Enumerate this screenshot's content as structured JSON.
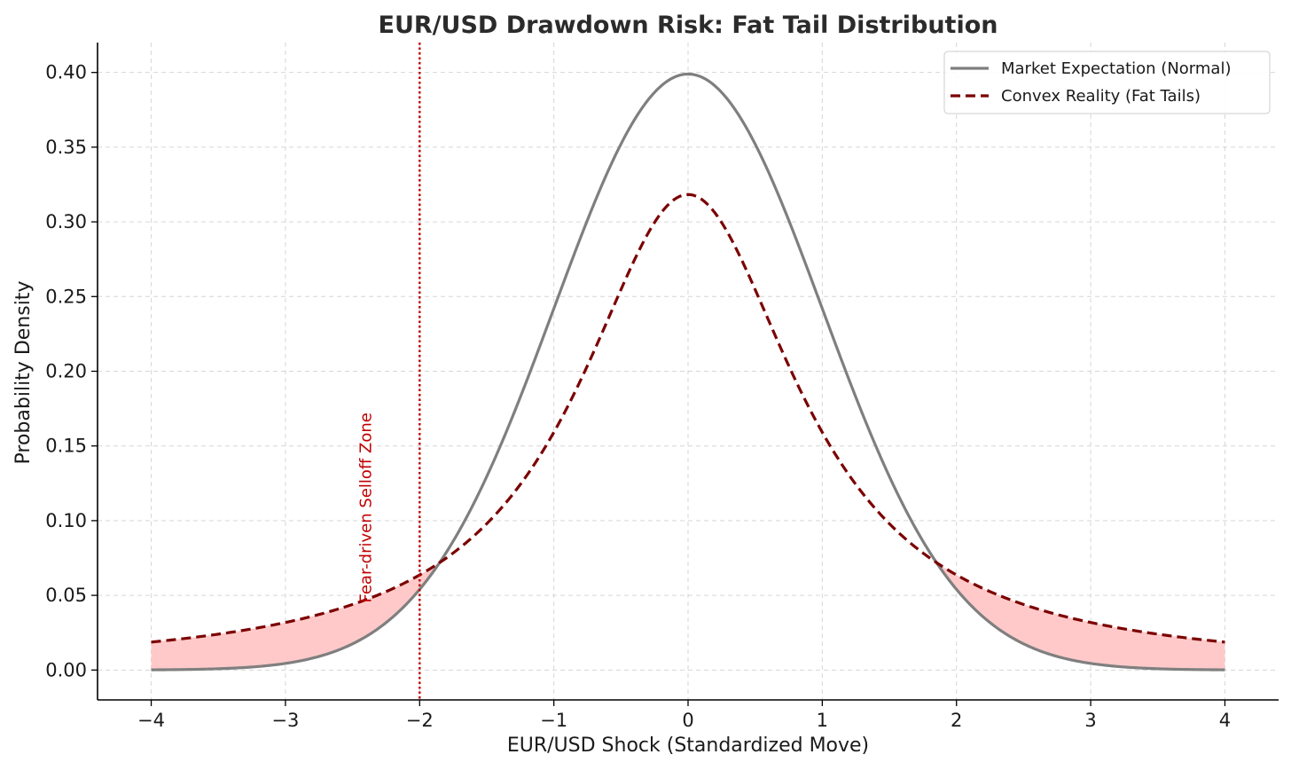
{
  "chart_data": {
    "type": "line",
    "title": "EUR/USD Drawdown Risk: Fat Tail Distribution",
    "xlabel": "EUR/USD Shock (Standardized Move)",
    "ylabel": "Probability Density",
    "xlim": [
      -4.4,
      4.4
    ],
    "ylim": [
      -0.02,
      0.42
    ],
    "x_ticks": [
      -4,
      -3,
      -2,
      -1,
      0,
      1,
      2,
      3,
      4
    ],
    "x_tick_labels": [
      "−4",
      "−3",
      "−2",
      "−1",
      "0",
      "1",
      "2",
      "3",
      "4"
    ],
    "y_ticks": [
      0.0,
      0.05,
      0.1,
      0.15,
      0.2,
      0.25,
      0.3,
      0.35,
      0.4
    ],
    "y_tick_labels": [
      "0.00",
      "0.05",
      "0.10",
      "0.15",
      "0.20",
      "0.25",
      "0.30",
      "0.35",
      "0.40"
    ],
    "grid": true,
    "legend_position": "top-right",
    "x": [
      -4,
      -3.75,
      -3.5,
      -3.25,
      -3,
      -2.75,
      -2.5,
      -2.25,
      -2,
      -1.75,
      -1.5,
      -1.25,
      -1,
      -0.75,
      -0.5,
      -0.25,
      0,
      0.25,
      0.5,
      0.75,
      1,
      1.25,
      1.5,
      1.75,
      2,
      2.25,
      2.5,
      2.75,
      3,
      3.25,
      3.5,
      3.75,
      4
    ],
    "series": [
      {
        "name": "Market Expectation (Normal)",
        "style": "solid",
        "color": "#7f7f7f",
        "values": [
          0.0001,
          0.0004,
          0.0009,
          0.002,
          0.0044,
          0.0091,
          0.0175,
          0.0317,
          0.054,
          0.0863,
          0.1295,
          0.1826,
          0.242,
          0.3011,
          0.3521,
          0.3867,
          0.3989,
          0.3867,
          0.3521,
          0.3011,
          0.242,
          0.1826,
          0.1295,
          0.0863,
          0.054,
          0.0317,
          0.0175,
          0.0091,
          0.0044,
          0.002,
          0.0009,
          0.0004,
          0.0001
        ]
      },
      {
        "name": "Convex Reality (Fat Tails)",
        "style": "dashed",
        "color": "#7b0000",
        "values": [
          0.0187,
          0.0212,
          0.0241,
          0.0276,
          0.0318,
          0.037,
          0.0439,
          0.0524,
          0.0637,
          0.0788,
          0.0979,
          0.1237,
          0.1592,
          0.2037,
          0.2546,
          0.2996,
          0.3183,
          0.2996,
          0.2546,
          0.2037,
          0.1592,
          0.1237,
          0.0979,
          0.0788,
          0.0637,
          0.0524,
          0.0439,
          0.037,
          0.0318,
          0.0276,
          0.0241,
          0.0212,
          0.0187
        ]
      }
    ],
    "shaded_regions": [
      {
        "x_from": -4,
        "x_to": -1.82,
        "color": "#ffc9c9"
      },
      {
        "x_from": 1.82,
        "x_to": 4,
        "color": "#ffc9c9"
      }
    ],
    "vline": {
      "x": -2,
      "color": "#c00000",
      "style": "dotted"
    },
    "annotation": {
      "text": "Fear-driven Selloff Zone",
      "x": -2.4,
      "y": 0.045,
      "color": "#c00000",
      "rotation": -90
    }
  }
}
